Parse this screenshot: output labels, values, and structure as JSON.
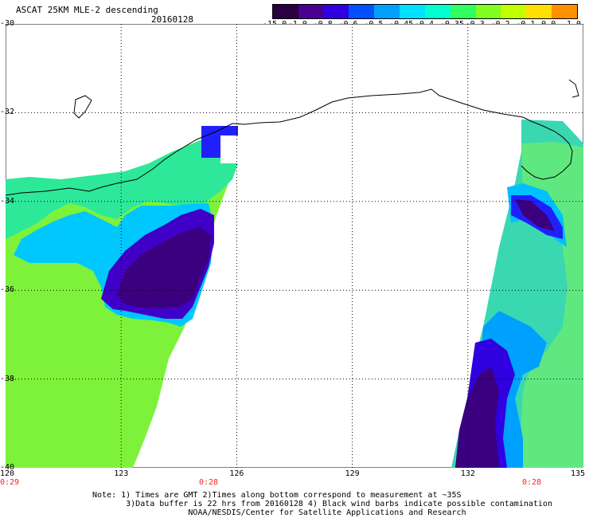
{
  "title": "ASCAT 25KM MLE-2 descending",
  "date": "20160128",
  "colorbar": {
    "labels": [
      "-15.0",
      "-1.0",
      "-0.8",
      "-0.6",
      "-0.5",
      "-0.45",
      "-0.4",
      "-0.35",
      "-0.3",
      "-0.2",
      "-0.1",
      "0.0",
      "1.0"
    ],
    "colors": [
      "#2a0040",
      "#4a0090",
      "#3000e0",
      "#0050ff",
      "#00a0ff",
      "#00e0ff",
      "#00ffd0",
      "#30ff60",
      "#80ff20",
      "#c0ff00",
      "#ffe000",
      "#ff9000",
      "#ff2000"
    ]
  },
  "axes": {
    "x_ticks": [
      "120",
      "123",
      "126",
      "129",
      "132",
      "135"
    ],
    "y_ticks": [
      "-30",
      "-32",
      "-34",
      "-36",
      "-38",
      "-40"
    ],
    "lon_range": [
      120,
      135
    ],
    "lat_range": [
      -40,
      -30
    ]
  },
  "times": [
    "0:29",
    "0:28",
    "0:28"
  ],
  "notes": [
    "Note: 1) Times are GMT 2)Times along bottom correspond to measurement at ~35S",
    "       3)Data buffer is 22 hrs from 20160128 4) Black wind barbs indicate possible contamination",
    "                    NOAA/NESDIS/Center for Satellite Applications and Research"
  ]
}
